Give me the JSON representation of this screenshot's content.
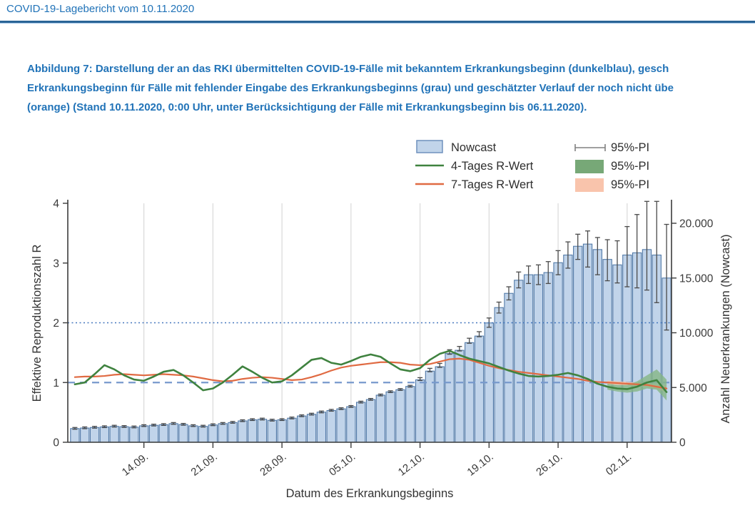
{
  "page": {
    "header": "COVID-19-Lagebericht vom 10.11.2020",
    "caption_lines": [
      "Abbildung 7: Darstellung der an das RKI übermittelten COVID-19-Fälle mit bekanntem Erkrankungsbeginn (dunkelblau), gesch",
      "Erkrankungsbeginn für Fälle mit fehlender Eingabe des Erkrankungsbeginns (grau) und geschätzter Verlauf der noch nicht übe",
      "(orange) (Stand 10.11.2020, 0:00 Uhr, unter Berücksichtigung der Fälle mit Erkrankungsbeginn bis 06.11.2020)."
    ]
  },
  "legend": {
    "left": [
      {
        "swatch": "bar",
        "label": "Nowcast"
      },
      {
        "swatch": "line-green",
        "label": "4-Tages R-Wert"
      },
      {
        "swatch": "line-orange",
        "label": "7-Tages R-Wert"
      }
    ],
    "right": [
      {
        "swatch": "errorbar",
        "label": "95%-PI"
      },
      {
        "swatch": "fill-green",
        "label": "95%-PI"
      },
      {
        "swatch": "fill-orange",
        "label": "95%-PI"
      }
    ]
  },
  "colors": {
    "header_blue": "#2173b8",
    "bar_fill": "#c1d4ea",
    "bar_stroke": "#527aa8",
    "errorbar": "#4a4a4a",
    "grid": "#d9d9d9",
    "ref_dashed_r1": "#7799cc",
    "ref_dotted_r2": "#4377bd",
    "r4_line": "#3f823f",
    "r7_line": "#e06a42",
    "r4_band": "#85b585",
    "r7_band": "#f8bfa2",
    "axis": "#3c3c3c",
    "legend_errorbar": "#808080"
  },
  "chart_data": {
    "type": "bar",
    "title": "",
    "xlabel": "Datum des Erkrankungsbeginns",
    "ylabel_left": "Effektive Reproduktionszahl R",
    "ylabel_right": "Anzahl Neuerkrankungen (Nowcast)",
    "ylim_left": [
      0,
      4
    ],
    "ylim_right": [
      0,
      21700
    ],
    "y_left_ticks": [
      "0",
      "1",
      "2",
      "3",
      "4"
    ],
    "y_left_tick_values": [
      0,
      1,
      2,
      3,
      4
    ],
    "y_right_ticks": [
      "0",
      "5.000",
      "10.000",
      "15.000",
      "20.000"
    ],
    "y_right_tick_values": [
      0,
      5000,
      10000,
      15000,
      20000
    ],
    "x_tick_labels": [
      "14.09.",
      "21.09.",
      "28.09.",
      "05.10.",
      "12.10.",
      "19.10.",
      "26.10.",
      "02.11."
    ],
    "x_tick_day_index": [
      7,
      14,
      21,
      28,
      35,
      42,
      49,
      56
    ],
    "reference_lines": [
      {
        "r": 1,
        "style": "dashed"
      },
      {
        "r": 2,
        "style": "dotted"
      }
    ],
    "dates": [
      "07.09.",
      "08.09.",
      "09.09.",
      "10.09.",
      "11.09.",
      "12.09.",
      "13.09.",
      "14.09.",
      "15.09.",
      "16.09.",
      "17.09.",
      "18.09.",
      "19.09.",
      "20.09.",
      "21.09.",
      "22.09.",
      "23.09.",
      "24.09.",
      "25.09.",
      "26.09.",
      "27.09.",
      "28.09.",
      "29.09.",
      "30.09.",
      "01.10.",
      "02.10.",
      "03.10.",
      "04.10.",
      "05.10.",
      "06.10.",
      "07.10.",
      "08.10.",
      "09.10.",
      "10.10.",
      "11.10.",
      "12.10.",
      "13.10.",
      "14.10.",
      "15.10.",
      "16.10.",
      "17.10.",
      "18.10.",
      "19.10.",
      "20.10.",
      "21.10.",
      "22.10.",
      "23.10.",
      "24.10.",
      "25.10.",
      "26.10.",
      "27.10.",
      "28.10.",
      "29.10.",
      "30.10.",
      "31.10.",
      "01.11.",
      "02.11.",
      "03.11.",
      "04.11.",
      "05.11.",
      "06.11."
    ],
    "series": [
      {
        "name": "Nowcast",
        "type": "bar",
        "values": [
          1250,
          1300,
          1350,
          1400,
          1450,
          1420,
          1380,
          1500,
          1550,
          1600,
          1700,
          1620,
          1500,
          1450,
          1580,
          1700,
          1800,
          1950,
          2050,
          2100,
          2000,
          2050,
          2200,
          2400,
          2550,
          2750,
          2900,
          3050,
          3250,
          3650,
          3900,
          4300,
          4600,
          4800,
          5100,
          5700,
          6500,
          6900,
          8100,
          8400,
          9100,
          9700,
          10900,
          12300,
          13600,
          14800,
          15300,
          15300,
          15500,
          16400,
          17100,
          17900,
          18100,
          17600,
          16700,
          16200,
          17100,
          17300,
          17600,
          17100,
          15000
        ]
      },
      {
        "name": "Nowcast 95%-PI",
        "type": "errorbar",
        "hi": [
          1350,
          1400,
          1450,
          1500,
          1550,
          1520,
          1480,
          1600,
          1650,
          1700,
          1800,
          1720,
          1600,
          1550,
          1680,
          1800,
          1900,
          2050,
          2150,
          2200,
          2100,
          2150,
          2300,
          2500,
          2650,
          2850,
          3000,
          3150,
          3350,
          3750,
          4000,
          4400,
          4700,
          4900,
          5200,
          5900,
          6750,
          7200,
          8450,
          8750,
          9500,
          10100,
          11350,
          12800,
          14200,
          15550,
          16100,
          16200,
          16500,
          17500,
          18300,
          19000,
          19300,
          18700,
          18500,
          18400,
          19700,
          20800,
          22000,
          22000,
          19900
        ],
        "lo": [
          1190,
          1240,
          1290,
          1340,
          1390,
          1360,
          1320,
          1440,
          1490,
          1540,
          1640,
          1560,
          1440,
          1390,
          1520,
          1640,
          1740,
          1890,
          1990,
          2040,
          1940,
          1990,
          2140,
          2340,
          2490,
          2690,
          2840,
          2990,
          3190,
          3590,
          3840,
          4240,
          4540,
          4740,
          5040,
          5640,
          6440,
          6840,
          8040,
          8340,
          9040,
          9640,
          10500,
          11800,
          13000,
          14100,
          14500,
          14400,
          14500,
          15300,
          15900,
          16700,
          16000,
          15300,
          14750,
          14550,
          14200,
          14100,
          13900,
          12750,
          10250
        ]
      },
      {
        "name": "4-Tages R-Wert",
        "type": "line",
        "values": [
          0.97,
          1.0,
          1.14,
          1.29,
          1.22,
          1.12,
          1.05,
          1.03,
          1.1,
          1.18,
          1.21,
          1.12,
          1.0,
          0.87,
          0.9,
          1.0,
          1.13,
          1.27,
          1.18,
          1.08,
          1.0,
          1.02,
          1.12,
          1.25,
          1.38,
          1.41,
          1.33,
          1.3,
          1.36,
          1.43,
          1.47,
          1.43,
          1.32,
          1.22,
          1.19,
          1.24,
          1.38,
          1.48,
          1.53,
          1.46,
          1.4,
          1.36,
          1.32,
          1.26,
          1.2,
          1.15,
          1.11,
          1.1,
          1.11,
          1.13,
          1.16,
          1.12,
          1.06,
          0.98,
          0.93,
          0.9,
          0.89,
          0.93,
          1.0,
          1.04,
          0.84
        ]
      },
      {
        "name": "7-Tages R-Wert",
        "type": "line",
        "values": [
          1.09,
          1.1,
          1.1,
          1.11,
          1.13,
          1.14,
          1.13,
          1.12,
          1.13,
          1.14,
          1.13,
          1.12,
          1.1,
          1.07,
          1.04,
          1.02,
          1.03,
          1.06,
          1.08,
          1.09,
          1.08,
          1.06,
          1.04,
          1.05,
          1.09,
          1.14,
          1.2,
          1.25,
          1.28,
          1.3,
          1.32,
          1.34,
          1.34,
          1.33,
          1.3,
          1.29,
          1.31,
          1.35,
          1.39,
          1.4,
          1.38,
          1.33,
          1.28,
          1.24,
          1.21,
          1.18,
          1.16,
          1.14,
          1.12,
          1.1,
          1.08,
          1.06,
          1.03,
          1.01,
          1.0,
          0.99,
          0.98,
          0.97,
          0.96,
          0.93,
          0.9
        ]
      },
      {
        "name": "4-Tages R-Wert 95%-PI",
        "type": "band",
        "start_index": 54,
        "lo": [
          0.88,
          0.85,
          0.83,
          0.85,
          0.9,
          0.88,
          0.7
        ],
        "hi": [
          0.98,
          0.96,
          0.96,
          1.02,
          1.12,
          1.22,
          1.05
        ]
      },
      {
        "name": "7-Tages R-Wert 95%-PI",
        "type": "band",
        "start_index": 54,
        "lo": [
          0.97,
          0.96,
          0.95,
          0.94,
          0.93,
          0.89,
          0.84
        ],
        "hi": [
          1.03,
          1.02,
          1.01,
          1.0,
          0.99,
          0.97,
          0.95
        ]
      }
    ]
  }
}
